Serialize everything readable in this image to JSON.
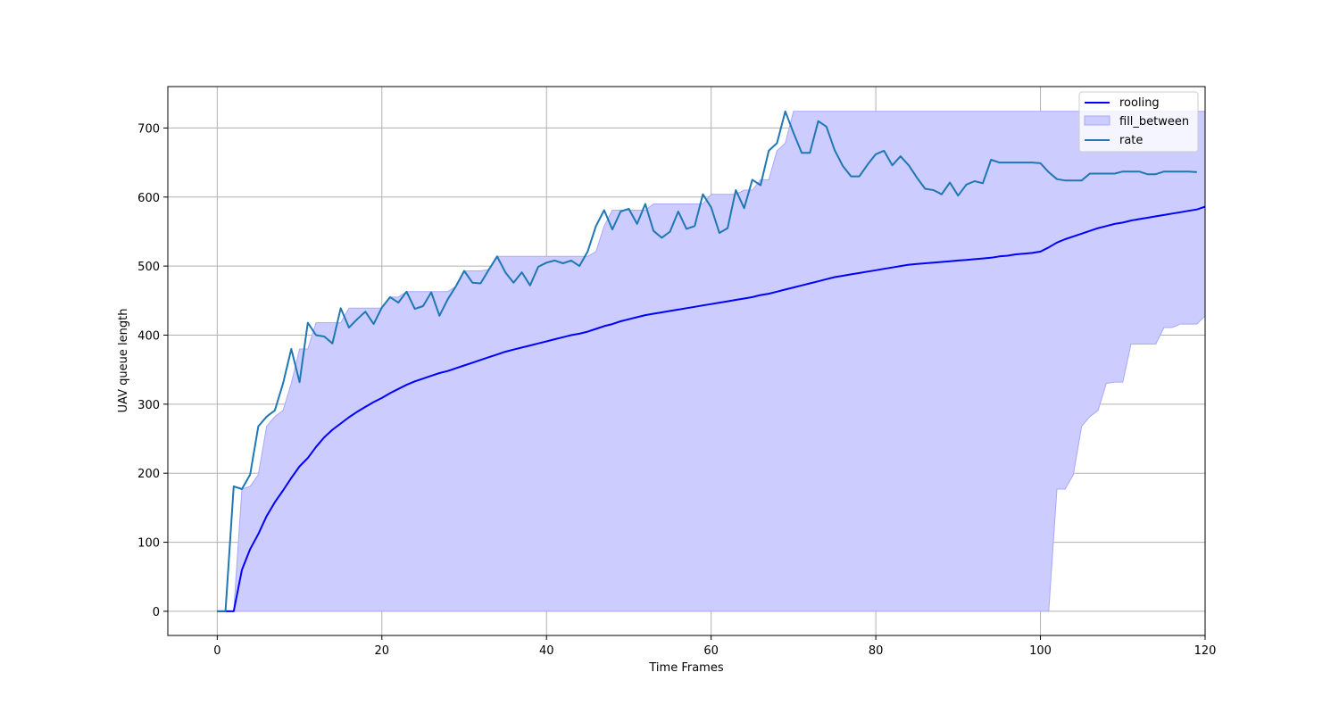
{
  "chart_data": {
    "type": "line",
    "title": "",
    "xlabel": "Time Frames",
    "ylabel": "UAV queue length",
    "xlim": [
      -6,
      120
    ],
    "ylim": [
      -35,
      760
    ],
    "xticks": [
      0,
      20,
      40,
      60,
      80,
      100,
      120
    ],
    "yticks": [
      0,
      100,
      200,
      300,
      400,
      500,
      600,
      700
    ],
    "grid": true,
    "legend_position": "upper right",
    "legend": [
      "rooling",
      "fill_between",
      "rate"
    ],
    "colors": {
      "rooling": "#0000ff",
      "fill": "#ccccff",
      "fill_edge": "#a8a8ff",
      "rate": "#1f77b4",
      "grid": "#b0b0b0"
    },
    "series": [
      {
        "name": "rate",
        "x": [
          0,
          1,
          2,
          3,
          4,
          5,
          6,
          7,
          8,
          9,
          10,
          11,
          12,
          13,
          14,
          15,
          16,
          17,
          18,
          19,
          20,
          21,
          22,
          23,
          24,
          25,
          26,
          27,
          28,
          29,
          30,
          31,
          32,
          33,
          34,
          35,
          36,
          37,
          38,
          39,
          40,
          41,
          42,
          43,
          44,
          45,
          46,
          47,
          48,
          49,
          50,
          51,
          52,
          53,
          54,
          55,
          56,
          57,
          58,
          59,
          60,
          61,
          62,
          63,
          64,
          65,
          66,
          67,
          68,
          69,
          70,
          71,
          72,
          73,
          74,
          75,
          76,
          77,
          78,
          79,
          80,
          81,
          82,
          83,
          84,
          85,
          86,
          87,
          88,
          89,
          90,
          91,
          92,
          93,
          94,
          95,
          96,
          97,
          98,
          99,
          100,
          101,
          102,
          103,
          104,
          105,
          106,
          107,
          108,
          109,
          110,
          111,
          112,
          113,
          114,
          115,
          116,
          117,
          118,
          119
        ],
        "y": [
          0,
          0,
          181,
          177,
          198,
          268,
          282,
          291,
          330,
          380,
          332,
          418,
          400,
          398,
          388,
          439,
          411,
          423,
          434,
          416,
          440,
          455,
          447,
          463,
          438,
          442,
          462,
          428,
          452,
          471,
          493,
          476,
          475,
          495,
          514,
          491,
          476,
          491,
          472,
          499,
          505,
          508,
          504,
          508,
          500,
          521,
          558,
          581,
          553,
          579,
          583,
          561,
          590,
          551,
          541,
          550,
          579,
          554,
          558,
          604,
          585,
          548,
          555,
          610,
          584,
          625,
          617,
          667,
          678,
          724,
          693,
          664,
          664,
          710,
          702,
          668,
          645,
          630,
          630,
          647,
          662,
          667,
          646,
          659,
          646,
          628,
          612,
          610,
          604,
          621,
          602,
          618,
          623,
          620,
          654,
          650,
          650,
          650,
          650,
          650,
          649,
          636,
          626,
          624,
          624,
          624,
          634,
          634,
          634,
          634,
          637,
          637,
          637,
          633,
          633,
          637,
          637,
          637,
          637,
          636
        ]
      },
      {
        "name": "rooling",
        "x": [
          0,
          1,
          2,
          3,
          4,
          5,
          6,
          7,
          8,
          9,
          10,
          11,
          12,
          13,
          14,
          15,
          16,
          17,
          18,
          19,
          20,
          21,
          22,
          23,
          24,
          25,
          26,
          27,
          28,
          29,
          30,
          31,
          32,
          33,
          34,
          35,
          36,
          37,
          38,
          39,
          40,
          41,
          42,
          43,
          44,
          45,
          46,
          47,
          48,
          49,
          50,
          51,
          52,
          53,
          54,
          55,
          56,
          57,
          58,
          59,
          60,
          61,
          62,
          63,
          64,
          65,
          66,
          67,
          68,
          69,
          70,
          71,
          72,
          73,
          74,
          75,
          76,
          77,
          78,
          79,
          80,
          81,
          82,
          83,
          84,
          85,
          86,
          87,
          88,
          89,
          90,
          91,
          92,
          93,
          94,
          95,
          96,
          97,
          98,
          99,
          100,
          101,
          102,
          103,
          104,
          105,
          106,
          107,
          108,
          109,
          110,
          111,
          112,
          113,
          114,
          115,
          116,
          117,
          118,
          119,
          120
        ],
        "y": [
          0,
          0,
          0,
          60,
          90,
          112,
          138,
          158,
          175,
          193,
          210,
          222,
          238,
          252,
          263,
          272,
          281,
          289,
          296,
          303,
          309,
          316,
          322,
          328,
          333,
          337,
          341,
          345,
          348,
          352,
          356,
          360,
          364,
          368,
          372,
          376,
          379,
          382,
          385,
          388,
          391,
          394,
          397,
          400,
          402,
          405,
          409,
          413,
          416,
          420,
          423,
          426,
          429,
          431,
          433,
          435,
          437,
          439,
          441,
          443,
          445,
          447,
          449,
          451,
          453,
          455,
          458,
          460,
          463,
          466,
          469,
          472,
          475,
          478,
          481,
          484,
          486,
          488,
          490,
          492,
          494,
          496,
          498,
          500,
          502,
          503,
          504,
          505,
          506,
          507,
          508,
          509,
          510,
          511,
          512,
          514,
          515,
          517,
          518,
          519,
          521,
          527,
          534,
          539,
          543,
          547,
          551,
          555,
          558,
          561,
          563,
          566,
          568,
          570,
          572,
          574,
          576,
          578,
          580,
          582,
          586
        ]
      },
      {
        "name": "fill_between",
        "x": [
          0,
          1,
          2,
          3,
          4,
          5,
          6,
          7,
          8,
          9,
          10,
          11,
          12,
          13,
          14,
          15,
          16,
          17,
          18,
          19,
          20,
          21,
          22,
          23,
          24,
          25,
          26,
          27,
          28,
          29,
          30,
          31,
          32,
          33,
          34,
          35,
          36,
          37,
          38,
          39,
          40,
          41,
          42,
          43,
          44,
          45,
          46,
          47,
          48,
          49,
          50,
          51,
          52,
          53,
          54,
          55,
          56,
          57,
          58,
          59,
          60,
          61,
          62,
          63,
          64,
          65,
          66,
          67,
          68,
          69,
          70,
          71,
          72,
          73,
          74,
          75,
          76,
          77,
          78,
          79,
          80,
          81,
          82,
          83,
          84,
          85,
          86,
          87,
          88,
          89,
          90,
          91,
          92,
          93,
          94,
          95,
          96,
          97,
          98,
          99,
          100,
          101,
          102,
          103,
          104,
          105,
          106,
          107,
          108,
          109,
          110,
          111,
          112,
          113,
          114,
          115,
          116,
          117,
          118,
          119,
          120
        ],
        "upper": [
          0,
          0,
          0,
          177,
          181,
          198,
          268,
          282,
          291,
          330,
          380,
          380,
          418,
          418,
          418,
          418,
          439,
          439,
          439,
          439,
          439,
          455,
          455,
          463,
          463,
          463,
          463,
          463,
          463,
          471,
          493,
          493,
          493,
          495,
          514,
          514,
          514,
          514,
          514,
          514,
          514,
          514,
          514,
          514,
          514,
          514,
          521,
          558,
          581,
          581,
          581,
          581,
          581,
          590,
          590,
          590,
          590,
          590,
          590,
          590,
          604,
          604,
          604,
          604,
          610,
          610,
          625,
          625,
          667,
          678,
          724,
          724,
          724,
          724,
          724,
          724,
          724,
          724,
          724,
          724,
          724,
          724,
          724,
          724,
          724,
          724,
          724,
          724,
          724,
          724,
          724,
          724,
          724,
          724,
          724,
          724,
          724,
          724,
          724,
          724,
          724,
          724,
          724,
          724,
          724,
          724,
          724,
          724,
          724,
          724,
          724,
          724,
          724,
          724,
          724,
          724,
          724,
          724,
          724,
          724,
          724
        ],
        "lower": [
          0,
          0,
          0,
          0,
          0,
          0,
          0,
          0,
          0,
          0,
          0,
          0,
          0,
          0,
          0,
          0,
          0,
          0,
          0,
          0,
          0,
          0,
          0,
          0,
          0,
          0,
          0,
          0,
          0,
          0,
          0,
          0,
          0,
          0,
          0,
          0,
          0,
          0,
          0,
          0,
          0,
          0,
          0,
          0,
          0,
          0,
          0,
          0,
          0,
          0,
          0,
          0,
          0,
          0,
          0,
          0,
          0,
          0,
          0,
          0,
          0,
          0,
          0,
          0,
          0,
          0,
          0,
          0,
          0,
          0,
          0,
          0,
          0,
          0,
          0,
          0,
          0,
          0,
          0,
          0,
          0,
          0,
          0,
          0,
          0,
          0,
          0,
          0,
          0,
          0,
          0,
          0,
          0,
          0,
          0,
          0,
          0,
          0,
          0,
          0,
          0,
          0,
          177,
          177,
          198,
          268,
          282,
          291,
          330,
          332,
          332,
          387,
          387,
          387,
          387,
          411,
          411,
          416,
          416,
          416,
          428
        ]
      }
    ]
  }
}
